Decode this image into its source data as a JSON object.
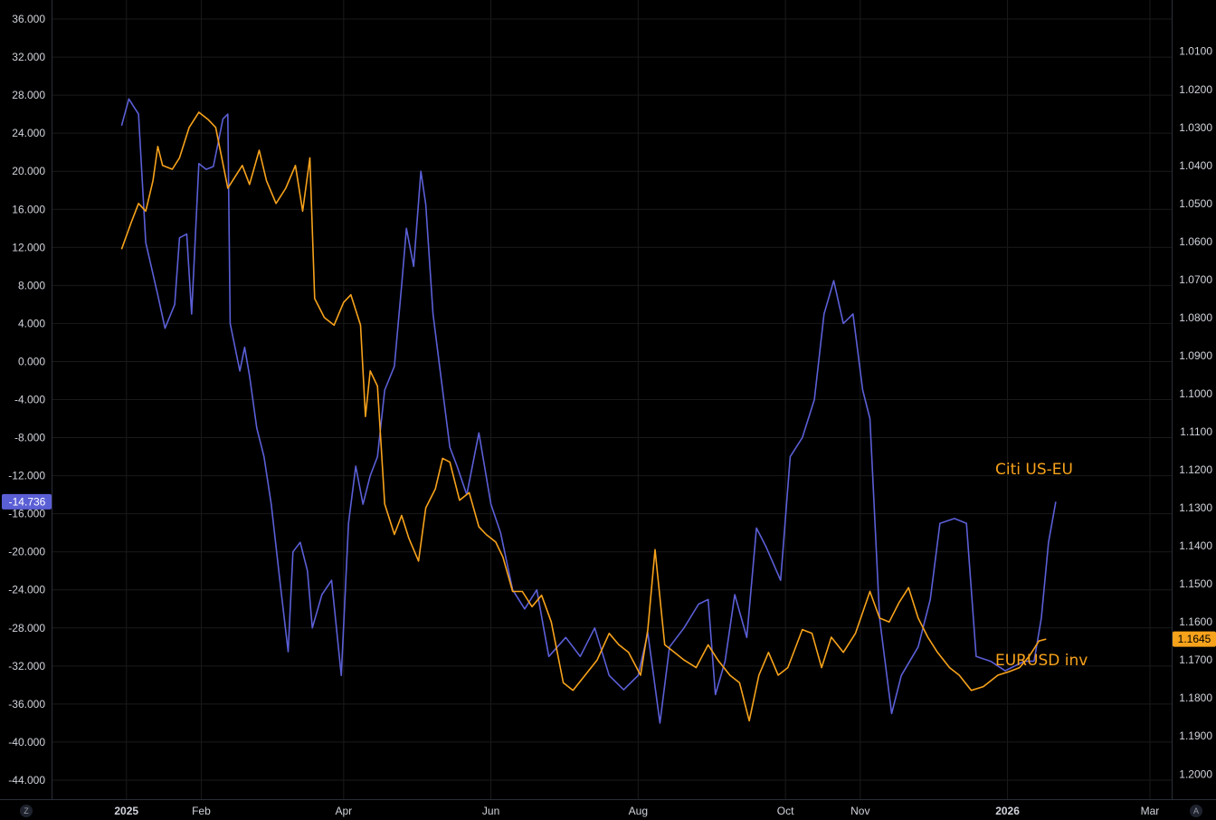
{
  "chart_data": {
    "type": "line",
    "title": "",
    "x_labels": [
      "2025",
      "Feb",
      "Apr",
      "Jun",
      "Aug",
      "Oct",
      "Nov",
      "2026",
      "Mar"
    ],
    "left_axis": {
      "ylim": [
        -46,
        38
      ],
      "ticks": [
        "36.000",
        "32.000",
        "28.000",
        "24.000",
        "20.000",
        "16.000",
        "12.000",
        "8.000",
        "4.000",
        "0.000",
        "-4.000",
        "-8.000",
        "-12.000",
        "-16.000",
        "-20.000",
        "-24.000",
        "-28.000",
        "-32.000",
        "-36.000",
        "-40.000",
        "-44.000"
      ],
      "tick_values": [
        36,
        32,
        28,
        24,
        20,
        16,
        12,
        8,
        4,
        0,
        -4,
        -8,
        -12,
        -16,
        -20,
        -24,
        -28,
        -32,
        -36,
        -40,
        -44
      ]
    },
    "right_axis": {
      "inverted": true,
      "ylim": [
        1.2066,
        0.9965
      ],
      "ticks": [
        "1.0100",
        "1.0200",
        "1.0300",
        "1.0400",
        "1.0500",
        "1.0600",
        "1.0700",
        "1.0800",
        "1.0900",
        "1.1000",
        "1.1100",
        "1.1200",
        "1.1300",
        "1.1400",
        "1.1500",
        "1.1600",
        "1.1700",
        "1.1800",
        "1.1900",
        "1.2000"
      ],
      "tick_values": [
        1.01,
        1.02,
        1.03,
        1.04,
        1.05,
        1.06,
        1.07,
        1.08,
        1.09,
        1.1,
        1.11,
        1.12,
        1.13,
        1.14,
        1.15,
        1.16,
        1.17,
        1.18,
        1.19,
        1.2
      ]
    },
    "grid": true,
    "series": [
      {
        "name": "Citi US-EU",
        "axis": "left",
        "color": "#5b5fd6",
        "last_value_label": "-14.736",
        "points": [
          [
            "2024-12-30",
            24.8
          ],
          [
            "2025-01-02",
            27.6
          ],
          [
            "2025-01-06",
            26.0
          ],
          [
            "2025-01-09",
            12.5
          ],
          [
            "2025-01-14",
            7.0
          ],
          [
            "2025-01-17",
            3.5
          ],
          [
            "2025-01-21",
            6.0
          ],
          [
            "2025-01-23",
            13.0
          ],
          [
            "2025-01-26",
            13.4
          ],
          [
            "2025-01-28",
            5.0
          ],
          [
            "2025-01-31",
            20.8
          ],
          [
            "2025-02-03",
            20.2
          ],
          [
            "2025-02-06",
            20.5
          ],
          [
            "2025-02-10",
            25.5
          ],
          [
            "2025-02-12",
            26.0
          ],
          [
            "2025-02-13",
            4.0
          ],
          [
            "2025-02-17",
            -1.0
          ],
          [
            "2025-02-19",
            1.5
          ],
          [
            "2025-02-21",
            -1.5
          ],
          [
            "2025-02-24",
            -7.0
          ],
          [
            "2025-02-27",
            -10.0
          ],
          [
            "2025-03-02",
            -15.0
          ],
          [
            "2025-03-06",
            -24.0
          ],
          [
            "2025-03-09",
            -30.5
          ],
          [
            "2025-03-11",
            -20.0
          ],
          [
            "2025-03-14",
            -19.0
          ],
          [
            "2025-03-17",
            -22.0
          ],
          [
            "2025-03-19",
            -28.0
          ],
          [
            "2025-03-23",
            -24.5
          ],
          [
            "2025-03-27",
            -23.0
          ],
          [
            "2025-03-31",
            -33.0
          ],
          [
            "2025-04-03",
            -17.0
          ],
          [
            "2025-04-06",
            -11.0
          ],
          [
            "2025-04-09",
            -15.0
          ],
          [
            "2025-04-12",
            -12.0
          ],
          [
            "2025-04-15",
            -10.0
          ],
          [
            "2025-04-18",
            -3.0
          ],
          [
            "2025-04-22",
            -0.5
          ],
          [
            "2025-04-25",
            8.0
          ],
          [
            "2025-04-27",
            14.0
          ],
          [
            "2025-04-30",
            10.0
          ],
          [
            "2025-05-03",
            20.0
          ],
          [
            "2025-05-05",
            16.5
          ],
          [
            "2025-05-08",
            5.0
          ],
          [
            "2025-05-12",
            -3.0
          ],
          [
            "2025-05-15",
            -9.0
          ],
          [
            "2025-05-18",
            -11.0
          ],
          [
            "2025-05-22",
            -14.0
          ],
          [
            "2025-05-27",
            -7.5
          ],
          [
            "2025-06-01",
            -15.0
          ],
          [
            "2025-06-05",
            -18.0
          ],
          [
            "2025-06-10",
            -24.0
          ],
          [
            "2025-06-15",
            -26.0
          ],
          [
            "2025-06-20",
            -24.0
          ],
          [
            "2025-06-25",
            -31.0
          ],
          [
            "2025-07-02",
            -29.0
          ],
          [
            "2025-07-08",
            -31.0
          ],
          [
            "2025-07-14",
            -28.0
          ],
          [
            "2025-07-20",
            -33.0
          ],
          [
            "2025-07-26",
            -34.5
          ],
          [
            "2025-08-01",
            -33.0
          ],
          [
            "2025-08-05",
            -28.5
          ],
          [
            "2025-08-10",
            -38.0
          ],
          [
            "2025-08-14",
            -30.0
          ],
          [
            "2025-08-20",
            -28.0
          ],
          [
            "2025-08-26",
            -25.5
          ],
          [
            "2025-08-30",
            -25.0
          ],
          [
            "2025-09-02",
            -35.0
          ],
          [
            "2025-09-06",
            -31.5
          ],
          [
            "2025-09-10",
            -24.5
          ],
          [
            "2025-09-15",
            -29.0
          ],
          [
            "2025-09-19",
            -17.5
          ],
          [
            "2025-09-23",
            -19.5
          ],
          [
            "2025-09-29",
            -23.0
          ],
          [
            "2025-10-03",
            -10.0
          ],
          [
            "2025-10-08",
            -8.0
          ],
          [
            "2025-10-13",
            -4.0
          ],
          [
            "2025-10-17",
            5.0
          ],
          [
            "2025-10-21",
            8.5
          ],
          [
            "2025-10-25",
            4.0
          ],
          [
            "2025-10-29",
            5.0
          ],
          [
            "2025-11-02",
            -3.0
          ],
          [
            "2025-11-05",
            -6.0
          ],
          [
            "2025-11-09",
            -27.0
          ],
          [
            "2025-11-14",
            -37.0
          ],
          [
            "2025-11-18",
            -33.0
          ],
          [
            "2025-11-25",
            -30.0
          ],
          [
            "2025-11-30",
            -25.0
          ],
          [
            "2025-12-04",
            -17.0
          ],
          [
            "2025-12-10",
            -16.5
          ],
          [
            "2025-12-15",
            -17.0
          ],
          [
            "2025-12-19",
            -31.0
          ],
          [
            "2025-12-25",
            -31.5
          ],
          [
            "2025-12-31",
            -32.5
          ],
          [
            "2026-01-04",
            -32.0
          ],
          [
            "2026-01-08",
            -31.5
          ],
          [
            "2026-01-12",
            -31.5
          ],
          [
            "2026-01-15",
            -27.0
          ],
          [
            "2026-01-18",
            -19.0
          ],
          [
            "2026-01-21",
            -14.736
          ]
        ]
      },
      {
        "name": "EURUSD inv",
        "axis": "right",
        "color": "#f7a21b",
        "last_value_label": "1.1645",
        "points": [
          [
            "2024-12-30",
            1.062
          ],
          [
            "2025-01-03",
            1.055
          ],
          [
            "2025-01-06",
            1.05
          ],
          [
            "2025-01-09",
            1.052
          ],
          [
            "2025-01-12",
            1.044
          ],
          [
            "2025-01-14",
            1.035
          ],
          [
            "2025-01-16",
            1.04
          ],
          [
            "2025-01-20",
            1.041
          ],
          [
            "2025-01-23",
            1.038
          ],
          [
            "2025-01-27",
            1.03
          ],
          [
            "2025-01-31",
            1.026
          ],
          [
            "2025-02-04",
            1.028
          ],
          [
            "2025-02-07",
            1.03
          ],
          [
            "2025-02-12",
            1.046
          ],
          [
            "2025-02-14",
            1.044
          ],
          [
            "2025-02-18",
            1.04
          ],
          [
            "2025-02-21",
            1.045
          ],
          [
            "2025-02-25",
            1.036
          ],
          [
            "2025-02-28",
            1.044
          ],
          [
            "2025-03-04",
            1.05
          ],
          [
            "2025-03-08",
            1.046
          ],
          [
            "2025-03-12",
            1.04
          ],
          [
            "2025-03-15",
            1.052
          ],
          [
            "2025-03-18",
            1.038
          ],
          [
            "2025-03-20",
            1.075
          ],
          [
            "2025-03-24",
            1.08
          ],
          [
            "2025-03-28",
            1.082
          ],
          [
            "2025-04-01",
            1.076
          ],
          [
            "2025-04-04",
            1.074
          ],
          [
            "2025-04-08",
            1.082
          ],
          [
            "2025-04-10",
            1.106
          ],
          [
            "2025-04-12",
            1.094
          ],
          [
            "2025-04-15",
            1.098
          ],
          [
            "2025-04-18",
            1.129
          ],
          [
            "2025-04-22",
            1.137
          ],
          [
            "2025-04-25",
            1.132
          ],
          [
            "2025-04-28",
            1.138
          ],
          [
            "2025-05-02",
            1.144
          ],
          [
            "2025-05-05",
            1.13
          ],
          [
            "2025-05-09",
            1.125
          ],
          [
            "2025-05-12",
            1.117
          ],
          [
            "2025-05-15",
            1.118
          ],
          [
            "2025-05-19",
            1.128
          ],
          [
            "2025-05-23",
            1.126
          ],
          [
            "2025-05-27",
            1.135
          ],
          [
            "2025-05-30",
            1.137
          ],
          [
            "2025-06-03",
            1.139
          ],
          [
            "2025-06-06",
            1.143
          ],
          [
            "2025-06-10",
            1.152
          ],
          [
            "2025-06-14",
            1.152
          ],
          [
            "2025-06-18",
            1.156
          ],
          [
            "2025-06-22",
            1.153
          ],
          [
            "2025-06-26",
            1.16
          ],
          [
            "2025-07-01",
            1.176
          ],
          [
            "2025-07-05",
            1.178
          ],
          [
            "2025-07-10",
            1.174
          ],
          [
            "2025-07-15",
            1.17
          ],
          [
            "2025-07-20",
            1.163
          ],
          [
            "2025-07-24",
            1.166
          ],
          [
            "2025-07-28",
            1.168
          ],
          [
            "2025-08-02",
            1.174
          ],
          [
            "2025-08-05",
            1.162
          ],
          [
            "2025-08-08",
            1.141
          ],
          [
            "2025-08-12",
            1.166
          ],
          [
            "2025-08-16",
            1.168
          ],
          [
            "2025-08-20",
            1.17
          ],
          [
            "2025-08-25",
            1.172
          ],
          [
            "2025-08-30",
            1.166
          ],
          [
            "2025-09-03",
            1.17
          ],
          [
            "2025-09-08",
            1.174
          ],
          [
            "2025-09-12",
            1.176
          ],
          [
            "2025-09-16",
            1.186
          ],
          [
            "2025-09-20",
            1.174
          ],
          [
            "2025-09-24",
            1.168
          ],
          [
            "2025-09-28",
            1.174
          ],
          [
            "2025-10-02",
            1.172
          ],
          [
            "2025-10-08",
            1.162
          ],
          [
            "2025-10-12",
            1.163
          ],
          [
            "2025-10-16",
            1.172
          ],
          [
            "2025-10-20",
            1.164
          ],
          [
            "2025-10-25",
            1.168
          ],
          [
            "2025-10-30",
            1.163
          ],
          [
            "2025-11-05",
            1.152
          ],
          [
            "2025-11-09",
            1.159
          ],
          [
            "2025-11-13",
            1.16
          ],
          [
            "2025-11-17",
            1.155
          ],
          [
            "2025-11-21",
            1.151
          ],
          [
            "2025-11-25",
            1.159
          ],
          [
            "2025-11-29",
            1.164
          ],
          [
            "2025-12-03",
            1.168
          ],
          [
            "2025-12-08",
            1.172
          ],
          [
            "2025-12-12",
            1.174
          ],
          [
            "2025-12-17",
            1.178
          ],
          [
            "2025-12-22",
            1.177
          ],
          [
            "2025-12-28",
            1.174
          ],
          [
            "2026-01-02",
            1.173
          ],
          [
            "2026-01-06",
            1.172
          ],
          [
            "2026-01-10",
            1.169
          ],
          [
            "2026-01-14",
            1.165
          ],
          [
            "2026-01-17",
            1.1645
          ]
        ]
      }
    ]
  },
  "legend": {
    "series1": "Citi US-EU",
    "series2": "EURUSD inv"
  },
  "badges": {
    "left_value": "-14.736",
    "right_value": "1.1645"
  },
  "corners": {
    "left": "Z",
    "right": "A"
  }
}
